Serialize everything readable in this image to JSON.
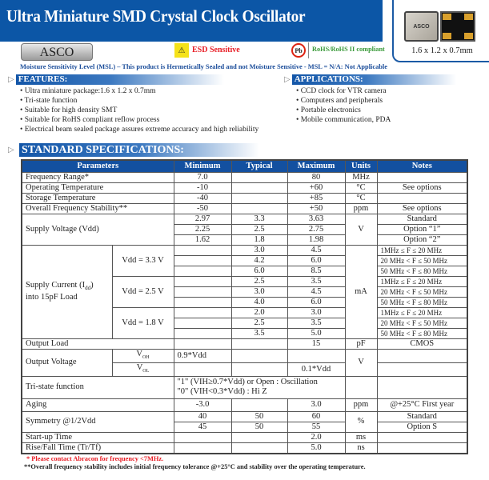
{
  "header": {
    "title": "Ultra Miniature SMD Crystal Clock Oscillator",
    "logo": "ASCO",
    "esd": "ESD Sensitive",
    "rohs_icon": "Pb",
    "rohs": "RoHS/RoHS II compliant",
    "product_image_label": "ASCO",
    "product_dims": "1.6 x 1.2 x 0.7mm"
  },
  "msl": "Moisture Sensitivity Level (MSL) – This product is Hermetically Sealed and not Moisture Sensitive - MSL = N/A: Not Applicable",
  "features": {
    "title": "FEATURES:",
    "items": [
      "Ultra miniature package:1.6 x 1.2 x 0.7mm",
      "Tri-state function",
      "Suitable for high density SMT",
      "Suitable for RoHS compliant reflow process",
      "Electrical beam sealed package assures extreme accuracy and high reliability"
    ]
  },
  "applications": {
    "title": "APPLICATIONS:",
    "items": [
      "CCD clock for VTR camera",
      "Computers and peripherals",
      "Portable electronics",
      "Mobile communication, PDA"
    ]
  },
  "specs": {
    "title": "STANDARD SPECIFICATIONS:",
    "headers": [
      "Parameters",
      "Minimum",
      "Typical",
      "Maximum",
      "Units",
      "Notes"
    ],
    "freq": [
      "Frequency Range*",
      "7.0",
      "",
      "80",
      "MHz",
      ""
    ],
    "optemp": [
      "Operating Temperature",
      "-10",
      "",
      "+60",
      "°C",
      "See options"
    ],
    "sttemp": [
      "Storage Temperature",
      "-40",
      "",
      "+85",
      "°C",
      ""
    ],
    "stab": [
      "Overall Frequency Stability**",
      "-50",
      "",
      "+50",
      "ppm",
      "See options"
    ],
    "vdd": {
      "label": "Supply Voltage (Vdd)",
      "unit": "V",
      "rows": [
        [
          "2.97",
          "3.3",
          "3.63",
          "Standard"
        ],
        [
          "2.25",
          "2.5",
          "2.75",
          "Option “1”"
        ],
        [
          "1.62",
          "1.8",
          "1.98",
          "Option “2”"
        ]
      ]
    },
    "idd": {
      "label1": "Supply Current (I",
      "sub": "dd",
      "label1b": ")",
      "label2": "into 15pF Load",
      "unit": "mA",
      "groups": [
        {
          "label": "Vdd = 3.3 V",
          "rows": [
            [
              "",
              "3.0",
              "4.5",
              "1MHz ≤ F ≤ 20 MHz"
            ],
            [
              "",
              "4.2",
              "6.0",
              "20 MHz < F ≤ 50 MHz"
            ],
            [
              "",
              "6.0",
              "8.5",
              "50 MHz < F ≤ 80 MHz"
            ]
          ]
        },
        {
          "label": "Vdd = 2.5 V",
          "rows": [
            [
              "",
              "2.5",
              "3.5",
              "1MHz ≤ F ≤ 20 MHz"
            ],
            [
              "",
              "3.0",
              "4.5",
              "20 MHz < F ≤ 50 MHz"
            ],
            [
              "",
              "4.0",
              "6.0",
              "50 MHz < F ≤ 80 MHz"
            ]
          ]
        },
        {
          "label": "Vdd = 1.8 V",
          "rows": [
            [
              "",
              "2.0",
              "3.0",
              "1MHz ≤ F ≤ 20 MHz"
            ],
            [
              "",
              "2.5",
              "3.5",
              "20 MHz < F ≤ 50 MHz"
            ],
            [
              "",
              "3.5",
              "5.0",
              "50 MHz < F ≤ 80 MHz"
            ]
          ]
        }
      ]
    },
    "load": [
      "Output Load",
      "",
      "",
      "15",
      "pF",
      "CMOS"
    ],
    "vout": {
      "label": "Output Voltage",
      "unit": "V",
      "voh": "V",
      "voh_sub": "OH",
      "voh_min": "0.9*Vdd",
      "vol": "V",
      "vol_sub": "OL",
      "vol_max": "0.1*Vdd"
    },
    "tristate": {
      "label": "Tri-state function",
      "line1": "\"1\" (VIH≥0.7*Vdd) or Open : Oscillation",
      "line2": "\"0\" (VIH<0.3*Vdd) : Hi Z"
    },
    "aging": [
      "Aging",
      "-3.0",
      "",
      "3.0",
      "ppm",
      "@+25°C  First year"
    ],
    "sym": {
      "label": "Symmetry @1/2Vdd",
      "unit": "%",
      "rows": [
        [
          "40",
          "50",
          "60",
          "Standard"
        ],
        [
          "45",
          "50",
          "55",
          "Option S"
        ]
      ]
    },
    "startup": [
      "Start-up Time",
      "",
      "",
      "2.0",
      "ms",
      ""
    ],
    "rise": [
      "Rise/Fall Time (Tr/Tf)",
      "",
      "",
      "5.0",
      "ns",
      ""
    ]
  },
  "footnotes": [
    "* Please contact Abracon for frequency <7MHz.",
    "**Overall frequency stability includes initial frequency tolerance @+25°C and stability over the operating temperature."
  ]
}
